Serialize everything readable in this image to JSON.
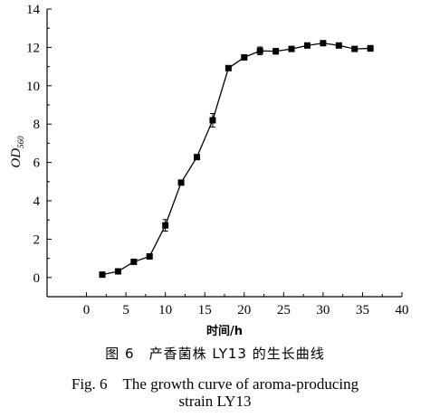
{
  "chart_data": {
    "type": "line",
    "xlabel": "时间/h",
    "ylabel": "OD",
    "ylabel_subscript": "560",
    "xlim": [
      -5,
      40
    ],
    "ylim": [
      -1,
      14
    ],
    "xticks": [
      0,
      5,
      10,
      15,
      20,
      25,
      30,
      35,
      40
    ],
    "yticks": [
      0,
      2,
      4,
      6,
      8,
      10,
      12,
      14
    ],
    "x_tick_labels": [
      "0",
      "5",
      "10",
      "15",
      "20",
      "25",
      "30",
      "35",
      "40"
    ],
    "y_tick_labels": [
      "0",
      "2",
      "4",
      "6",
      "8",
      "10",
      "12",
      "14"
    ],
    "marker": "square",
    "series": [
      {
        "x": [
          2,
          4,
          6,
          8,
          10,
          12,
          14,
          16,
          18,
          20,
          22,
          24,
          26,
          28,
          30,
          32,
          34,
          36
        ],
        "y": [
          0.15,
          0.32,
          0.82,
          1.1,
          2.72,
          4.95,
          6.28,
          8.2,
          10.92,
          11.48,
          11.82,
          11.8,
          11.92,
          12.1,
          12.22,
          12.1,
          11.92,
          11.95
        ],
        "error": [
          0.05,
          0.05,
          0.06,
          0.08,
          0.3,
          0.12,
          0.08,
          0.35,
          0.1,
          0.08,
          0.2,
          0.15,
          0.08,
          0.08,
          0.1,
          0.08,
          0.08,
          0.15
        ]
      }
    ]
  },
  "caption": {
    "cn": "图 6　产香菌株 LY13 的生长曲线",
    "en_line1": "Fig. 6　The growth curve of aroma-producing",
    "en_line2": "strain LY13"
  }
}
